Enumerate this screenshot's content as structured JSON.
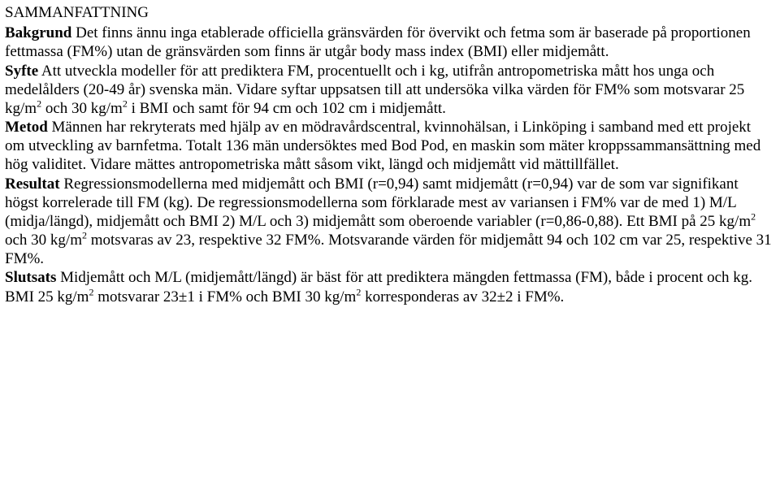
{
  "title": "SAMMANFATTNING",
  "sections": {
    "bakgrund_label": "Bakgrund",
    "bakgrund_text": " Det finns ännu inga etablerade officiella gränsvärden för övervikt och fetma som är baserade på proportionen fettmassa (FM%) utan de gränsvärden som finns är utgår body mass index (BMI) eller midjemått.",
    "syfte_label": "Syfte",
    "syfte_text_a": " Att utveckla modeller för att prediktera FM, procentuellt och i kg, utifrån antropometriska mått hos unga och medelålders (20-49 år) svenska män. Vidare syftar uppsatsen till att undersöka vilka värden för FM% som motsvarar 25 kg/m",
    "syfte_text_b": " och 30 kg/m",
    "syfte_text_c": " i BMI och samt för 94 cm och 102 cm i midjemått.",
    "metod_label": "Metod",
    "metod_text": " Männen har rekryterats med hjälp av en mödravårdscentral, kvinnohälsan, i Linköping i samband med ett projekt om utveckling av barnfetma. Totalt 136 män undersöktes med Bod Pod, en maskin som mäter kroppssammansättning med hög validitet. Vidare mättes antropometriska mått såsom vikt, längd och midjemått vid mättillfället.",
    "resultat_label": "Resultat",
    "resultat_text_a": " Regressionsmodellerna med midjemått och BMI (r=0,94) samt midjemått (r=0,94) var de som var signifikant högst korrelerade till FM (kg). De regressionsmodellerna som förklarade mest av variansen i FM% var de med 1) M/L (midja/längd), midjemått och BMI 2) M/L och 3) midjemått som oberoende variabler (r=0,86-0,88). Ett BMI på 25 kg/m",
    "resultat_text_b": " och 30 kg/m",
    "resultat_text_c": " motsvaras av 23, respektive 32 FM%. Motsvarande värden för midjemått 94 och 102 cm var 25, respektive 31 FM%.",
    "slutsats_label": "Slutsats",
    "slutsats_text_a": " Midjemått och M/L (midjemått/längd) är bäst för att prediktera mängden fettmassa (FM), både i procent och kg. BMI 25 kg/m",
    "slutsats_text_b": " motsvarar 23±1 i FM% och BMI 30 kg/m",
    "slutsats_text_c": " korresponderas av 32±2 i FM%.",
    "sup2": "2"
  }
}
